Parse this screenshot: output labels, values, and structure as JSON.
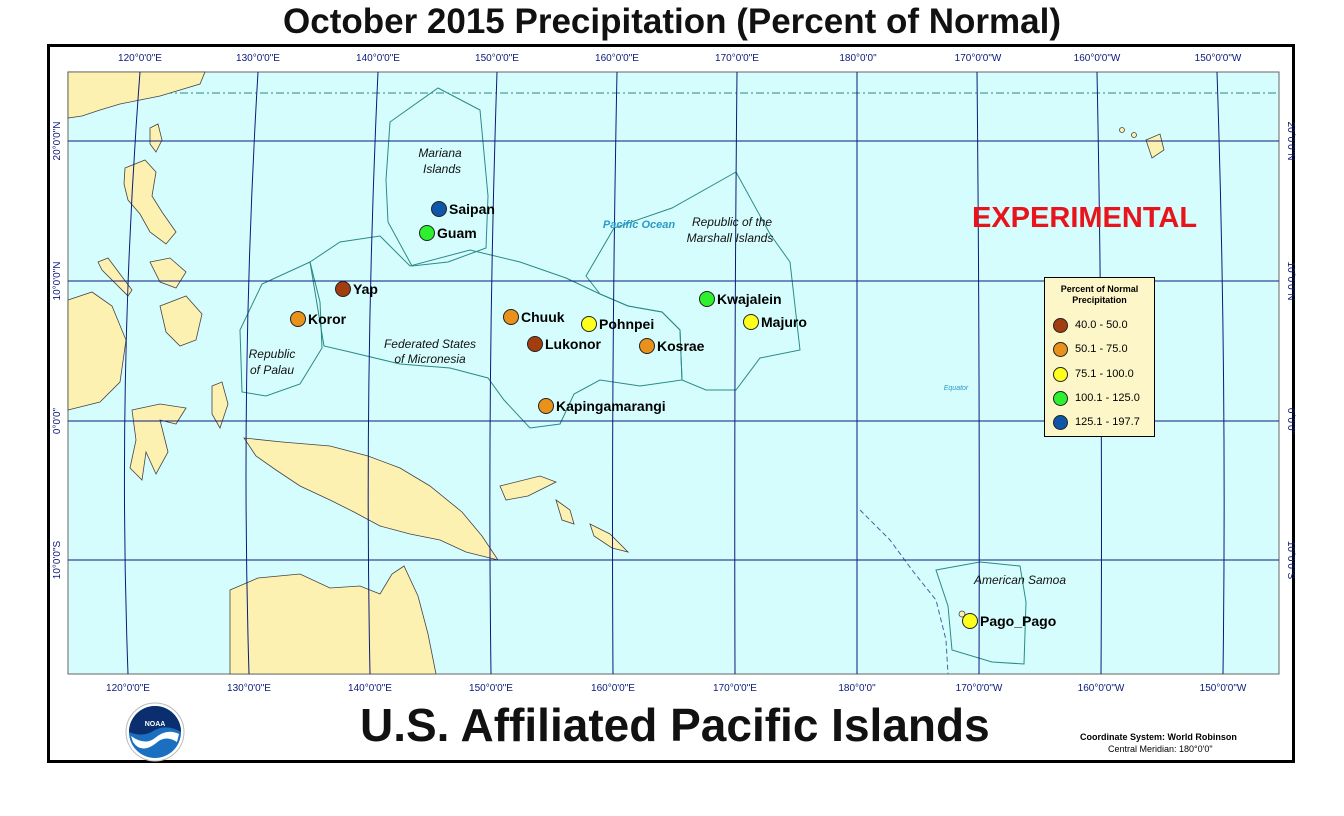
{
  "title": "October 2015 Precipitation (Percent of Normal)",
  "subtitle": "U.S. Affiliated Pacific Islands",
  "watermark": {
    "text": "EXPERIMENTAL",
    "color": "#e8141c"
  },
  "colors": {
    "ocean": "#d6fdfd",
    "land": "#fdf1b2",
    "grid": "#0b1a7a",
    "boundary": "#2a8a86"
  },
  "graticule": {
    "lon_top": [
      "120°0'0\"E",
      "130°0'0\"E",
      "140°0'0\"E",
      "150°0'0\"E",
      "160°0'0\"E",
      "170°0'0\"E",
      "180°0'0\"",
      "170°0'0\"W",
      "160°0'0\"W",
      "150°0'0\"W"
    ],
    "lon_bottom": [
      "120°0'0\"E",
      "130°0'0\"E",
      "140°0'0\"E",
      "150°0'0\"E",
      "160°0'0\"E",
      "170°0'0\"E",
      "180°0'0\"",
      "170°0'0\"W",
      "160°0'0\"W",
      "150°0'0\"W"
    ],
    "lat": [
      "20°0'0\"N",
      "10°0'0\"N",
      "0°0'0\"",
      "10°0'0\"S"
    ]
  },
  "region_labels": {
    "mariana": [
      "Mariana",
      "Islands"
    ],
    "palau": [
      "Republic",
      "of Palau"
    ],
    "fsm": [
      "Federated States",
      "of Micronesia"
    ],
    "marshall": [
      "Republic of the",
      "Marshall Islands"
    ],
    "samoa": [
      "American Samoa"
    ],
    "ocean": "Pacific Ocean",
    "equator": "Equator"
  },
  "stations": [
    {
      "name": "Saipan",
      "category": 4
    },
    {
      "name": "Guam",
      "category": 3
    },
    {
      "name": "Yap",
      "category": 0
    },
    {
      "name": "Koror",
      "category": 1
    },
    {
      "name": "Chuuk",
      "category": 1
    },
    {
      "name": "Pohnpei",
      "category": 2
    },
    {
      "name": "Lukonor",
      "category": 0
    },
    {
      "name": "Kosrae",
      "category": 1
    },
    {
      "name": "Kwajalein",
      "category": 3
    },
    {
      "name": "Majuro",
      "category": 2
    },
    {
      "name": "Kapingamarangi",
      "category": 1
    },
    {
      "name": "Pago_Pago",
      "category": 2
    }
  ],
  "legend": {
    "title": [
      "Percent of Normal",
      "Precipitation"
    ],
    "items": [
      {
        "label": "40.0 - 50.0",
        "color": "#a23d0f"
      },
      {
        "label": "50.1 - 75.0",
        "color": "#e8911b"
      },
      {
        "label": "75.1 - 100.0",
        "color": "#ffff1e"
      },
      {
        "label": "100.1 - 125.0",
        "color": "#2ef02e"
      },
      {
        "label": "125.1 - 197.7",
        "color": "#0e56a8"
      }
    ]
  },
  "coordinate_system": {
    "line1": "Coordinate System: World Robinson",
    "line2": "Central Meridian: 180°0'0\""
  },
  "logo_text": "NOAA"
}
